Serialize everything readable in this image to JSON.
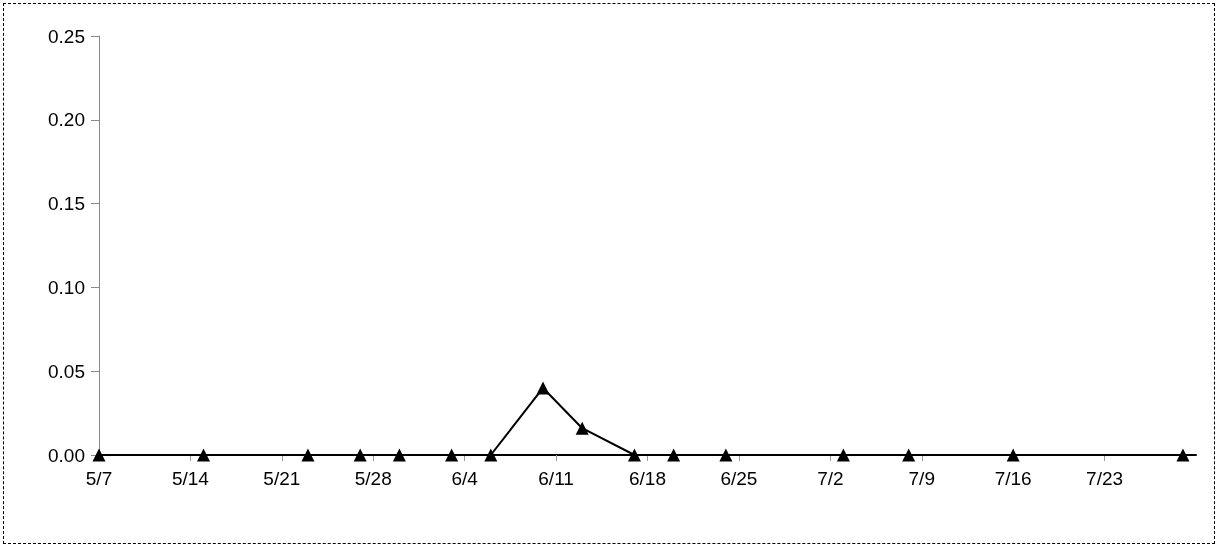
{
  "chart_data": {
    "type": "line",
    "x": [
      "--05-07",
      "--05-15",
      "--05-23",
      "--05-27",
      "--05-30",
      "--06-03",
      "--06-06",
      "--06-10",
      "--06-13",
      "--06-17",
      "--06-20",
      "--06-24",
      "--07-03",
      "--07-08",
      "--07-16",
      "--07-29"
    ],
    "series": [
      {
        "color": "#000000",
        "values": [
          0,
          0,
          0,
          0,
          0,
          0,
          0,
          0.04,
          0.016,
          0,
          0,
          0,
          0,
          0,
          0,
          0
        ]
      }
    ],
    "xlim": [
      "--05-07",
      "--07-30"
    ],
    "xticks": [
      {
        "value": "--05-07",
        "label": "5/7"
      },
      {
        "value": "--05-14",
        "label": "5/14"
      },
      {
        "value": "--05-21",
        "label": "5/21"
      },
      {
        "value": "--05-28",
        "label": "5/28"
      },
      {
        "value": "--06-04",
        "label": "6/4"
      },
      {
        "value": "--06-11",
        "label": "6/11"
      },
      {
        "value": "--06-18",
        "label": "6/18"
      },
      {
        "value": "--06-25",
        "label": "6/25"
      },
      {
        "value": "--07-02",
        "label": "7/2"
      },
      {
        "value": "--07-09",
        "label": "7/9"
      },
      {
        "value": "--07-16",
        "label": "7/16"
      },
      {
        "value": "--07-23",
        "label": "7/23"
      }
    ],
    "ylim": [
      0,
      0.25
    ],
    "yticks": [
      {
        "value": 0,
        "label": "0.00"
      },
      {
        "value": 0.05,
        "label": "0.05"
      },
      {
        "value": 0.1,
        "label": "0.10"
      },
      {
        "value": 0.15,
        "label": "0.15"
      },
      {
        "value": 0.2,
        "label": "0.20"
      },
      {
        "value": 0.25,
        "label": "0.25"
      }
    ],
    "grid": false,
    "marker": "triangle",
    "line_style": "solid"
  }
}
